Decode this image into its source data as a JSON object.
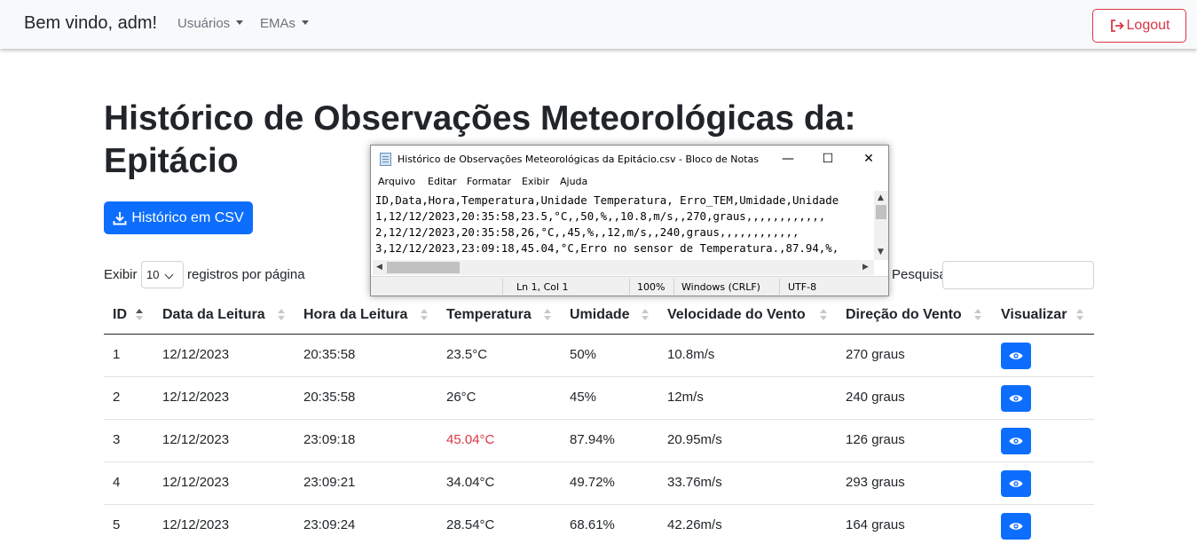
{
  "navbar": {
    "brand": "Bem vindo, adm!",
    "nav_items": [
      "Usuários",
      "EMAs"
    ],
    "logout_label": "Logout"
  },
  "page": {
    "title_line1": "Histórico de Observações Meteorológicas da:",
    "title_line2": "Epitácio",
    "csv_button": "Histórico em CSV",
    "length_prefix": "Exibir",
    "length_value": "10",
    "length_suffix": "registros por página",
    "search_label": "Pesquisar:",
    "search_value": ""
  },
  "table": {
    "headers": [
      "ID",
      "Data da Leitura",
      "Hora da Leitura",
      "Temperatura",
      "Umidade",
      "Velocidade do Vento",
      "Direção do Vento",
      "Visualizar"
    ],
    "rows": [
      {
        "id": "1",
        "data": "12/12/2023",
        "hora": "20:35:58",
        "temp": "23.5°C",
        "umid": "50%",
        "vel": "10.8m/s",
        "dir": "270 graus"
      },
      {
        "id": "2",
        "data": "12/12/2023",
        "hora": "20:35:58",
        "temp": "26°C",
        "umid": "45%",
        "vel": "12m/s",
        "dir": "240 graus"
      },
      {
        "id": "3",
        "data": "12/12/2023",
        "hora": "23:09:18",
        "temp": "45.04°C",
        "umid": "87.94%",
        "vel": "20.95m/s",
        "dir": "126 graus"
      },
      {
        "id": "4",
        "data": "12/12/2023",
        "hora": "23:09:21",
        "temp": "34.04°C",
        "umid": "49.72%",
        "vel": "33.76m/s",
        "dir": "293 graus"
      },
      {
        "id": "5",
        "data": "12/12/2023",
        "hora": "23:09:24",
        "temp": "28.54°C",
        "umid": "68.61%",
        "vel": "42.26m/s",
        "dir": "164 graus"
      }
    ],
    "error_color": "#dc3545"
  },
  "notepad": {
    "title": "Histórico de Observações Meteorológicas da Epitácio.csv - Bloco de Notas",
    "controls": [
      "—",
      "☐",
      "✕"
    ],
    "menu": [
      "Arquivo",
      "Editar",
      "Formatar",
      "Exibir",
      "Ajuda"
    ],
    "lines": [
      "ID,Data,Hora,Temperatura,Unidade Temperatura, Erro_TEM,Umidade,Unidade",
      "1,12/12/2023,20:35:58,23.5,°C,,50,%,,10.8,m/s,,270,graus,,,,,,,,,,,,",
      "2,12/12/2023,20:35:58,26,°C,,45,%,,12,m/s,,240,graus,,,,,,,,,,,,",
      "3,12/12/2023,23:09:18,45.04,°C,Erro no sensor de Temperatura.,87.94,%,"
    ],
    "status": {
      "position": "Ln 1, Col 1",
      "zoom": "100%",
      "eol": "Windows (CRLF)",
      "encoding": "UTF-8"
    }
  },
  "colors": {
    "primary": "#0d6efd",
    "danger": "#dc3545"
  }
}
